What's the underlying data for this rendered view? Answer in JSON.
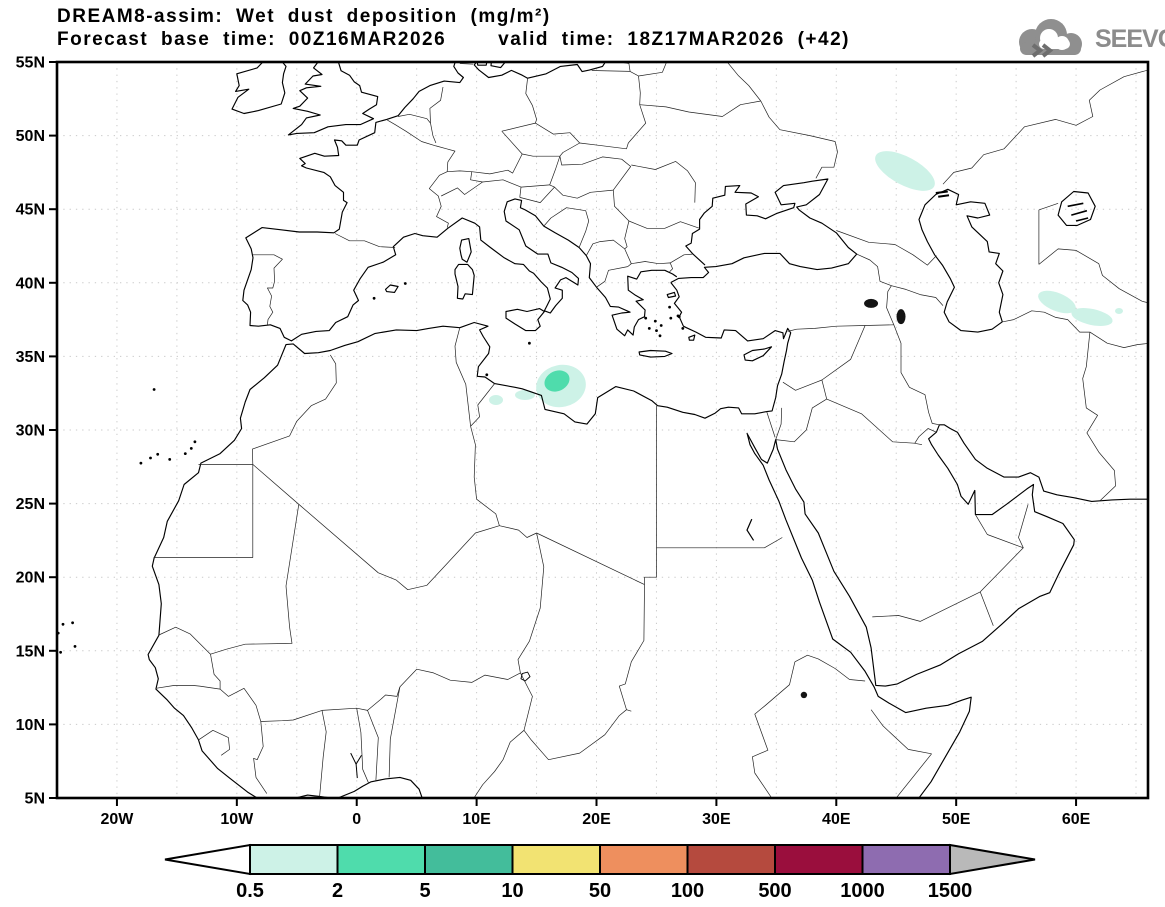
{
  "header": {
    "title": "DREAM8-assim: Wet dust deposition (mg/m²)",
    "forecast_base": "Forecast base time: 00Z16MAR2026",
    "valid_time": "valid time: 18Z17MAR2026 (+42)"
  },
  "logo": {
    "text": "SEEVCCC"
  },
  "axes": {
    "lat_labels": [
      "55N",
      "50N",
      "45N",
      "40N",
      "35N",
      "30N",
      "25N",
      "20N",
      "15N",
      "10N",
      "5N"
    ],
    "lon_labels": [
      "20W",
      "10W",
      "0",
      "10E",
      "20E",
      "30E",
      "40E",
      "50E",
      "60E"
    ]
  },
  "colorbar": {
    "tick_labels": [
      "0.5",
      "2",
      "5",
      "10",
      "50",
      "100",
      "500",
      "1000",
      "1500"
    ],
    "segment_colors": [
      "#cdf2e7",
      "#4fdcac",
      "#43bd9b",
      "#f2e372",
      "#ee8f5e",
      "#b54a3e",
      "#9a0e3d",
      "#8e6cb0"
    ],
    "underflow_color": "#ffffff",
    "overflow_color": "#b9b9b9",
    "outline_color": "#000000"
  },
  "map": {
    "frame_color": "#000000",
    "grid_color": "#c9c9c9",
    "coast_color": "#000000",
    "blob_colors": {
      "outer": "#cdf2e7",
      "core": "#4fdcac"
    }
  }
}
